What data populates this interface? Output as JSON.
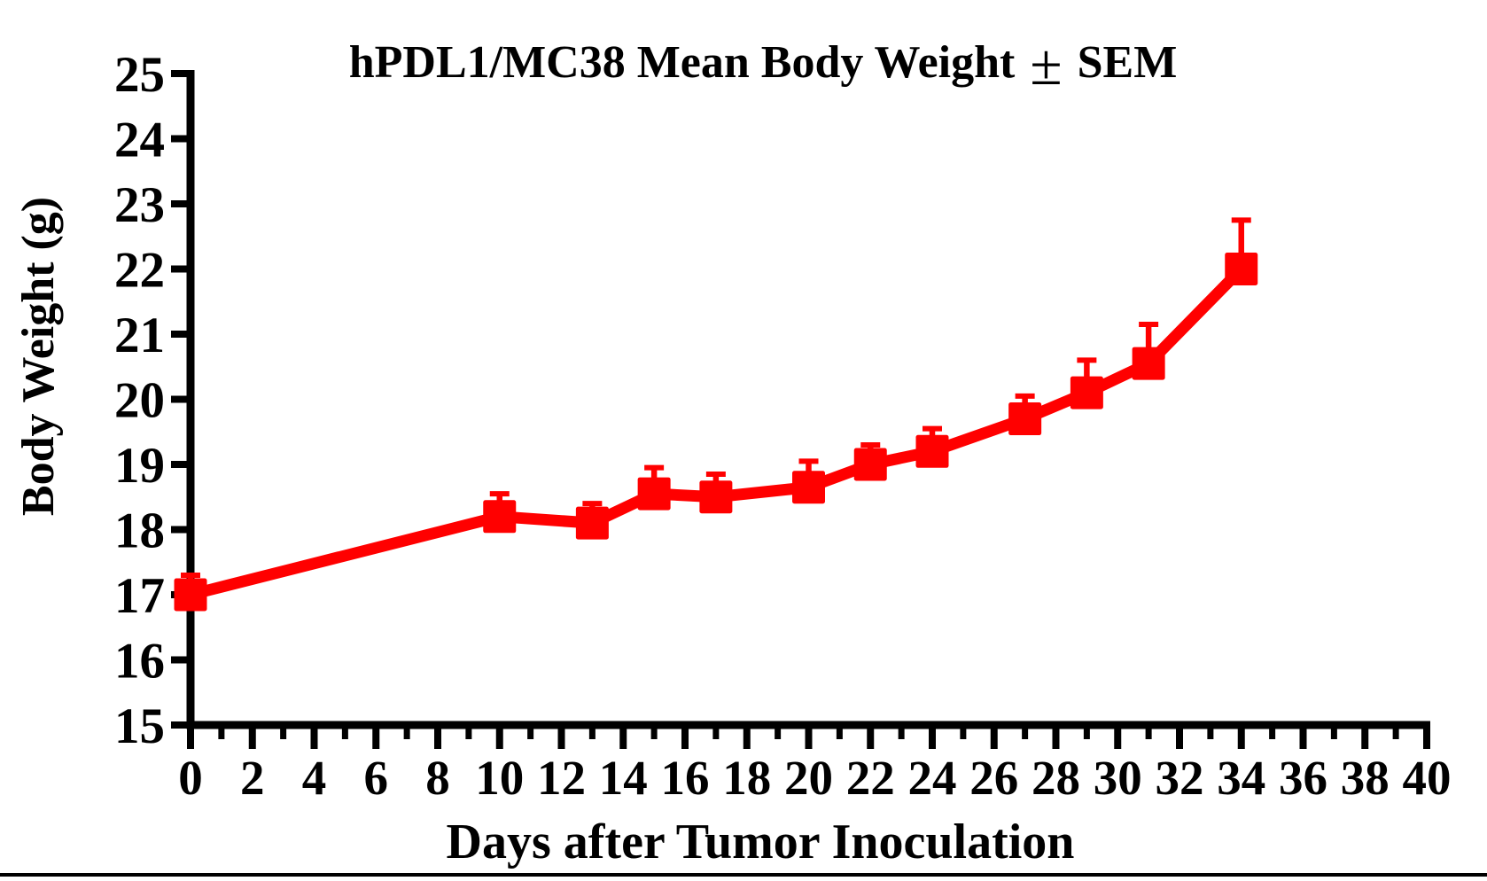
{
  "colors": {
    "series": "#ff0000",
    "axis": "#000000",
    "text": "#000000",
    "background": "#ffffff"
  },
  "chart_data": {
    "type": "line",
    "title": "hPDL1/MC38 Mean Body Weight ± SEM",
    "title_parts": {
      "prefix": "hPDL1/MC38 Mean Body Weight",
      "pm": "±",
      "suffix": "SEM"
    },
    "xlabel": "Days after Tumor Inoculation",
    "ylabel": "Body Weight (g)",
    "xlim": [
      0,
      40
    ],
    "ylim": [
      15,
      25
    ],
    "grid": false,
    "legend_position": "none",
    "x_major_tick_step": 2,
    "x_minor_tick_step": 1,
    "y_tick_step": 1,
    "x_tick_labels": [
      "0",
      "2",
      "4",
      "6",
      "8",
      "10",
      "12",
      "14",
      "16",
      "18",
      "20",
      "22",
      "24",
      "26",
      "28",
      "30",
      "32",
      "34",
      "36",
      "38",
      "40"
    ],
    "y_tick_labels": [
      "15",
      "16",
      "17",
      "18",
      "19",
      "20",
      "21",
      "22",
      "23",
      "24",
      "25"
    ],
    "series": [
      {
        "name": "hPDL1/MC38 mean body weight",
        "color": "#ff0000",
        "marker": "square",
        "error_type": "SEM",
        "error_direction": "up",
        "x": [
          0,
          10,
          13,
          15,
          17,
          20,
          22,
          24,
          27,
          29,
          31,
          34
        ],
        "y": [
          17.0,
          18.2,
          18.1,
          18.55,
          18.5,
          18.65,
          19.0,
          19.2,
          19.7,
          20.1,
          20.55,
          22.0
        ],
        "sem": [
          0.3,
          0.35,
          0.3,
          0.4,
          0.35,
          0.4,
          0.3,
          0.35,
          0.35,
          0.5,
          0.6,
          0.75
        ]
      }
    ]
  }
}
